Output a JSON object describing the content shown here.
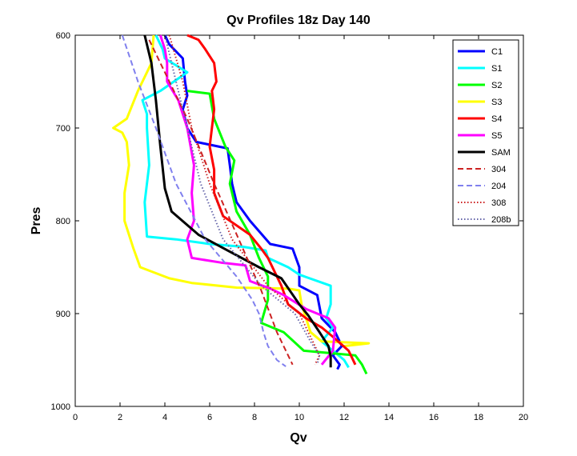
{
  "chart_data": {
    "type": "line",
    "title": "Qv Profiles 18z Day 140",
    "xlabel": "Qv",
    "ylabel": "Pres",
    "xlim": [
      0,
      20
    ],
    "ylim": [
      600,
      1000
    ],
    "y_reversed": true,
    "x_ticks": [
      "0",
      "2",
      "4",
      "6",
      "8",
      "10",
      "12",
      "14",
      "16",
      "18",
      "20"
    ],
    "y_ticks": [
      "600",
      "700",
      "800",
      "900",
      "1000"
    ],
    "legend_position": "top-right",
    "grid": false,
    "series": [
      {
        "name": "C1",
        "color": "#0000ff",
        "style": "solid",
        "points": [
          [
            4.0,
            600
          ],
          [
            4.2,
            610
          ],
          [
            4.8,
            625
          ],
          [
            4.9,
            650
          ],
          [
            5.0,
            665
          ],
          [
            4.8,
            680
          ],
          [
            5.0,
            700
          ],
          [
            5.4,
            715
          ],
          [
            6.8,
            722
          ],
          [
            6.9,
            740
          ],
          [
            7.0,
            760
          ],
          [
            7.2,
            780
          ],
          [
            7.8,
            800
          ],
          [
            8.7,
            825
          ],
          [
            9.7,
            830
          ],
          [
            10.0,
            850
          ],
          [
            10.0,
            870
          ],
          [
            10.8,
            880
          ],
          [
            11.0,
            905
          ],
          [
            11.6,
            920
          ],
          [
            11.9,
            935
          ],
          [
            11.5,
            945
          ],
          [
            11.8,
            955
          ],
          [
            11.7,
            960
          ]
        ]
      },
      {
        "name": "S1",
        "color": "#00ffff",
        "style": "solid",
        "points": [
          [
            3.6,
            600
          ],
          [
            3.9,
            615
          ],
          [
            4.0,
            625
          ],
          [
            5.0,
            640
          ],
          [
            3.8,
            660
          ],
          [
            3.0,
            670
          ],
          [
            3.2,
            685
          ],
          [
            3.2,
            700
          ],
          [
            3.3,
            740
          ],
          [
            3.1,
            780
          ],
          [
            3.2,
            817
          ],
          [
            4.5,
            820
          ],
          [
            6.0,
            825
          ],
          [
            7.5,
            828
          ],
          [
            8.5,
            832
          ],
          [
            8.6,
            840
          ],
          [
            9.5,
            850
          ],
          [
            10.0,
            858
          ],
          [
            11.4,
            870
          ],
          [
            11.4,
            890
          ],
          [
            11.2,
            905
          ],
          [
            11.5,
            915
          ],
          [
            11.0,
            930
          ],
          [
            11.5,
            940
          ],
          [
            12.0,
            950
          ],
          [
            12.2,
            958
          ]
        ]
      },
      {
        "name": "S2",
        "color": "#00ff00",
        "style": "solid",
        "points": [
          [
            5.0,
            660
          ],
          [
            6.0,
            663
          ],
          [
            6.2,
            690
          ],
          [
            6.7,
            720
          ],
          [
            7.1,
            735
          ],
          [
            6.9,
            760
          ],
          [
            7.2,
            790
          ],
          [
            7.8,
            815
          ],
          [
            8.2,
            840
          ],
          [
            8.6,
            860
          ],
          [
            8.6,
            885
          ],
          [
            8.3,
            910
          ],
          [
            9.3,
            920
          ],
          [
            10.2,
            940
          ],
          [
            12.5,
            945
          ],
          [
            12.8,
            955
          ],
          [
            13.0,
            965
          ]
        ]
      },
      {
        "name": "S3",
        "color": "#ffff00",
        "style": "solid",
        "points": [
          [
            3.5,
            600
          ],
          [
            3.4,
            630
          ],
          [
            2.8,
            660
          ],
          [
            2.3,
            690
          ],
          [
            1.7,
            700
          ],
          [
            2.1,
            705
          ],
          [
            2.3,
            715
          ],
          [
            2.4,
            740
          ],
          [
            2.2,
            770
          ],
          [
            2.2,
            800
          ],
          [
            2.6,
            830
          ],
          [
            2.9,
            850
          ],
          [
            4.2,
            862
          ],
          [
            5.2,
            867
          ],
          [
            7.2,
            872
          ],
          [
            9.5,
            873
          ],
          [
            10.0,
            875
          ],
          [
            10.1,
            890
          ],
          [
            10.3,
            905
          ],
          [
            10.5,
            920
          ],
          [
            11.0,
            930
          ],
          [
            13.1,
            932
          ],
          [
            12.0,
            935
          ]
        ]
      },
      {
        "name": "S4",
        "color": "#ff0000",
        "style": "solid",
        "points": [
          [
            5.0,
            600
          ],
          [
            5.5,
            605
          ],
          [
            5.8,
            615
          ],
          [
            6.2,
            630
          ],
          [
            6.3,
            650
          ],
          [
            6.1,
            660
          ],
          [
            6.2,
            680
          ],
          [
            6.1,
            700
          ],
          [
            6.0,
            720
          ],
          [
            6.2,
            745
          ],
          [
            6.2,
            770
          ],
          [
            6.6,
            795
          ],
          [
            7.8,
            815
          ],
          [
            8.3,
            830
          ],
          [
            8.6,
            840
          ],
          [
            9.2,
            870
          ],
          [
            9.5,
            890
          ],
          [
            10.3,
            905
          ],
          [
            11.0,
            915
          ],
          [
            11.5,
            925
          ],
          [
            12.2,
            940
          ],
          [
            12.5,
            955
          ]
        ]
      },
      {
        "name": "S5",
        "color": "#ff00ff",
        "style": "solid",
        "points": [
          [
            3.8,
            600
          ],
          [
            4.0,
            615
          ],
          [
            4.1,
            630
          ],
          [
            4.1,
            650
          ],
          [
            4.6,
            670
          ],
          [
            5.0,
            700
          ],
          [
            5.3,
            740
          ],
          [
            5.2,
            770
          ],
          [
            5.3,
            800
          ],
          [
            5.0,
            820
          ],
          [
            5.2,
            840
          ],
          [
            6.5,
            845
          ],
          [
            7.6,
            848
          ],
          [
            7.8,
            865
          ],
          [
            8.7,
            873
          ],
          [
            9.3,
            880
          ],
          [
            10.3,
            895
          ],
          [
            11.3,
            905
          ],
          [
            11.6,
            915
          ],
          [
            11.5,
            940
          ],
          [
            11.0,
            955
          ]
        ]
      },
      {
        "name": "SAM",
        "color": "#000000",
        "style": "solid",
        "points": [
          [
            3.1,
            600
          ],
          [
            3.4,
            630
          ],
          [
            3.6,
            670
          ],
          [
            3.8,
            720
          ],
          [
            4.0,
            765
          ],
          [
            4.3,
            790
          ],
          [
            5.5,
            815
          ],
          [
            6.8,
            832
          ],
          [
            8.2,
            850
          ],
          [
            9.2,
            862
          ],
          [
            9.6,
            876
          ],
          [
            10.0,
            890
          ],
          [
            10.4,
            902
          ],
          [
            10.9,
            920
          ],
          [
            11.3,
            935
          ],
          [
            11.4,
            946
          ],
          [
            11.4,
            958
          ]
        ]
      },
      {
        "name": "304",
        "color": "#cc2222",
        "style": "dashed",
        "points": [
          [
            3.3,
            605
          ],
          [
            5.0,
            690
          ],
          [
            6.2,
            760
          ],
          [
            7.3,
            820
          ],
          [
            8.3,
            875
          ],
          [
            9.0,
            920
          ],
          [
            9.5,
            945
          ],
          [
            9.7,
            955
          ]
        ]
      },
      {
        "name": "204",
        "color": "#8080ee",
        "style": "dashed",
        "points": [
          [
            2.1,
            600
          ],
          [
            2.8,
            650
          ],
          [
            3.6,
            700
          ],
          [
            4.5,
            760
          ],
          [
            5.8,
            820
          ],
          [
            7.2,
            860
          ],
          [
            7.9,
            885
          ],
          [
            8.2,
            900
          ],
          [
            8.4,
            920
          ],
          [
            8.6,
            935
          ],
          [
            9.0,
            950
          ],
          [
            9.4,
            957
          ]
        ]
      },
      {
        "name": "308",
        "color": "#cc2222",
        "style": "dotted",
        "points": [
          [
            4.2,
            600
          ],
          [
            4.8,
            650
          ],
          [
            5.2,
            700
          ],
          [
            6.0,
            760
          ],
          [
            7.0,
            820
          ],
          [
            8.6,
            870
          ],
          [
            10.0,
            900
          ],
          [
            10.6,
            930
          ],
          [
            10.9,
            945
          ],
          [
            10.7,
            955
          ]
        ]
      },
      {
        "name": "208b",
        "color": "#6666aa",
        "style": "dotted",
        "points": [
          [
            4.0,
            600
          ],
          [
            4.5,
            650
          ],
          [
            5.0,
            700
          ],
          [
            5.6,
            760
          ],
          [
            6.6,
            820
          ],
          [
            8.3,
            870
          ],
          [
            9.8,
            900
          ],
          [
            10.5,
            930
          ],
          [
            10.9,
            945
          ],
          [
            10.8,
            955
          ]
        ]
      }
    ]
  }
}
